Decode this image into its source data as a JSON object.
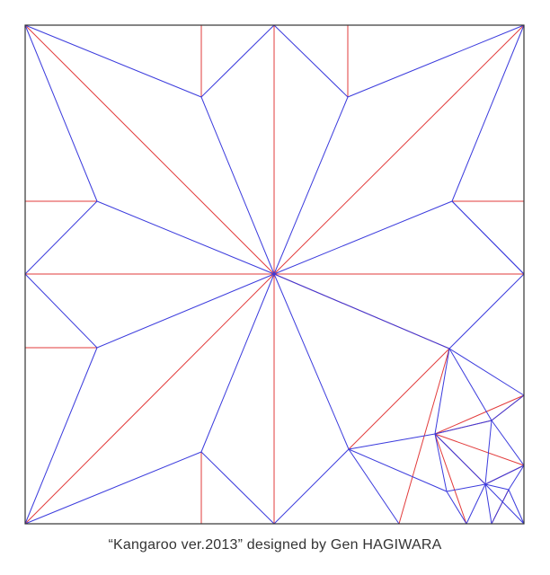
{
  "caption": "“Kangaroo ver.2013” designed by Gen HAGIWARA",
  "legend_colors": {
    "border": "#333333",
    "mountain_fold": "#e23b3b",
    "valley_fold": "#3b3bdd"
  }
}
